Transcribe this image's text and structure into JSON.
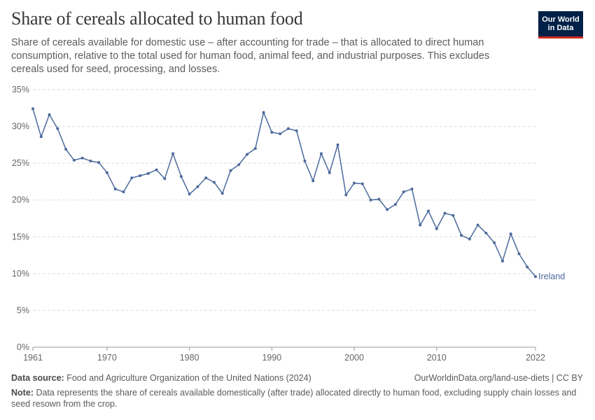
{
  "header": {
    "title": "Share of cereals allocated to human food",
    "subtitle": "Share of cereals available for domestic use – after accounting for trade – that is allocated to direct human consumption, relative to the total used for human food, animal feed, and industrial purposes. This excludes cereals used for seed, processing, and losses."
  },
  "logo": {
    "line1": "Our World",
    "line2": "in Data",
    "bg_color": "#002147",
    "accent_color": "#ce261e"
  },
  "chart_data": {
    "type": "line",
    "title": "Share of cereals allocated to human food",
    "xlabel": "",
    "ylabel": "",
    "xlim": [
      1961,
      2022
    ],
    "ylim": [
      0,
      35
    ],
    "x_ticks": [
      "1961",
      "1970",
      "1980",
      "1990",
      "2000",
      "2010",
      "2022"
    ],
    "y_ticks": [
      "0%",
      "5%",
      "10%",
      "15%",
      "20%",
      "25%",
      "30%",
      "35%"
    ],
    "grid": "horizontal dashed",
    "line_color": "#4c6a9c",
    "series": [
      {
        "name": "Ireland",
        "x": [
          1961,
          1962,
          1963,
          1964,
          1965,
          1966,
          1967,
          1968,
          1969,
          1970,
          1971,
          1972,
          1973,
          1974,
          1975,
          1976,
          1977,
          1978,
          1979,
          1980,
          1981,
          1982,
          1983,
          1984,
          1985,
          1986,
          1987,
          1988,
          1989,
          1990,
          1991,
          1992,
          1993,
          1994,
          1995,
          1996,
          1997,
          1998,
          1999,
          2000,
          2001,
          2002,
          2003,
          2004,
          2005,
          2006,
          2007,
          2008,
          2009,
          2010,
          2011,
          2012,
          2013,
          2014,
          2015,
          2016,
          2017,
          2018,
          2019,
          2020,
          2021,
          2022
        ],
        "values": [
          32.4,
          28.6,
          31.6,
          29.7,
          26.9,
          25.4,
          25.7,
          25.3,
          25.1,
          23.7,
          21.5,
          21.1,
          23.0,
          23.3,
          23.6,
          24.1,
          22.9,
          26.3,
          23.2,
          20.8,
          21.8,
          23.0,
          22.4,
          20.9,
          24.0,
          24.8,
          26.2,
          27.0,
          31.9,
          29.2,
          29.0,
          29.7,
          29.4,
          25.3,
          22.6,
          26.3,
          23.7,
          27.5,
          20.7,
          22.3,
          22.2,
          20.0,
          20.1,
          18.7,
          19.4,
          21.1,
          21.5,
          16.6,
          18.5,
          16.1,
          18.2,
          17.9,
          15.2,
          14.7,
          16.6,
          15.5,
          14.2,
          11.7,
          15.4,
          12.7,
          10.9,
          9.6
        ]
      }
    ]
  },
  "footer": {
    "source_label": "Data source:",
    "source_text": "Food and Agriculture Organization of the United Nations (2024)",
    "url_text": "OurWorldinData.org/land-use-diets | CC BY",
    "note_label": "Note:",
    "note_text": "Data represents the share of cereals available domestically (after trade) allocated directly to human food, excluding supply chain losses and seed resown from the crop."
  }
}
